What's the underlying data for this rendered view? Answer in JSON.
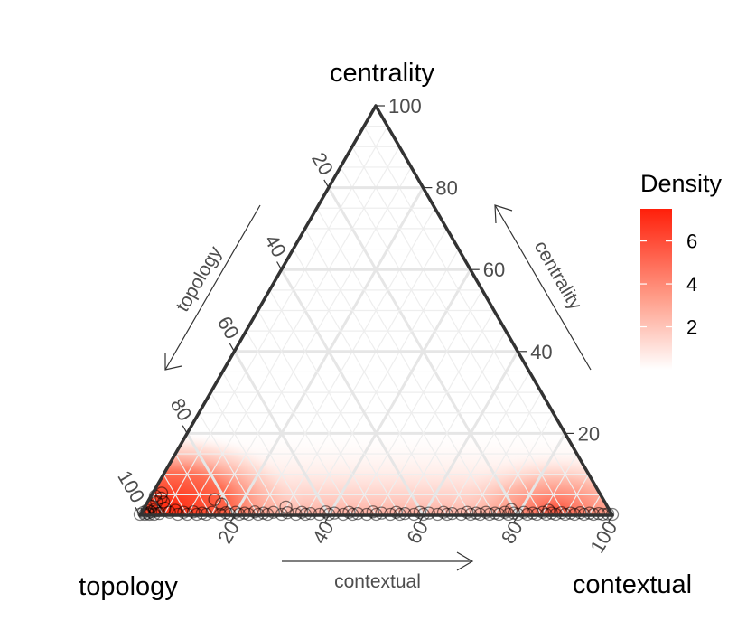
{
  "chart_data": {
    "type": "scatter",
    "subtype": "ternary-density",
    "axes": {
      "top": "centrality",
      "left": "topology",
      "right": "contextual"
    },
    "arrow_labels": {
      "left_side": "topology",
      "right_side": "centrality",
      "bottom": "contextual"
    },
    "tick_values": [
      20,
      40,
      60,
      80,
      100
    ],
    "tick_labels": [
      "20",
      "40",
      "60",
      "80",
      "100"
    ],
    "grid": true,
    "legend": {
      "title": "Density",
      "ticks": [
        2,
        4,
        6
      ],
      "tick_labels": [
        "2",
        "4",
        "6"
      ],
      "max": 7.5,
      "low_color": "#ffffff",
      "high_color": "#ff2a10",
      "position": "right"
    },
    "density_hotspots": [
      {
        "contextual": 6,
        "centrality": 3,
        "strength": 1.0
      },
      {
        "contextual": 92,
        "centrality": 2,
        "strength": 0.6
      }
    ],
    "points_contextual_centrality": [
      [
        0,
        0
      ],
      [
        0.5,
        0.5
      ],
      [
        1,
        0
      ],
      [
        1,
        1
      ],
      [
        1.5,
        0.3
      ],
      [
        2,
        0
      ],
      [
        2,
        0.6
      ],
      [
        2.5,
        1.2
      ],
      [
        3,
        0
      ],
      [
        3,
        0.8
      ],
      [
        4,
        0.2
      ],
      [
        4.5,
        1.5
      ],
      [
        1.5,
        2
      ],
      [
        2,
        3
      ],
      [
        2.5,
        4
      ],
      [
        3.5,
        3
      ],
      [
        1,
        4.5
      ],
      [
        2,
        5.2
      ],
      [
        6,
        0.5
      ],
      [
        7,
        1
      ],
      [
        8,
        0
      ],
      [
        9,
        0.5
      ],
      [
        10,
        0
      ],
      [
        11,
        0.6
      ],
      [
        12,
        0
      ],
      [
        13,
        0.3
      ],
      [
        14,
        0
      ],
      [
        15,
        0.5
      ],
      [
        14,
        3.6
      ],
      [
        16,
        2.5
      ],
      [
        17,
        0
      ],
      [
        18,
        0.4
      ],
      [
        19,
        0
      ],
      [
        20,
        0.5
      ],
      [
        21,
        0
      ],
      [
        22,
        0.3
      ],
      [
        23,
        0
      ],
      [
        24,
        0.6
      ],
      [
        25,
        0
      ],
      [
        26,
        0.3
      ],
      [
        27,
        0
      ],
      [
        28,
        0.5
      ],
      [
        30,
        0
      ],
      [
        30,
        1.8
      ],
      [
        31,
        0.4
      ],
      [
        33,
        0
      ],
      [
        34,
        0.5
      ],
      [
        35,
        0
      ],
      [
        36,
        0.2
      ],
      [
        38,
        0
      ],
      [
        39,
        0.6
      ],
      [
        40,
        0
      ],
      [
        41,
        0.3
      ],
      [
        43,
        0
      ],
      [
        44,
        0.5
      ],
      [
        45,
        0
      ],
      [
        46,
        0.2
      ],
      [
        48,
        0
      ],
      [
        49,
        0.6
      ],
      [
        50,
        0
      ],
      [
        51,
        0.3
      ],
      [
        53,
        0
      ],
      [
        54,
        0.5
      ],
      [
        55,
        0
      ],
      [
        56,
        0.2
      ],
      [
        58,
        0
      ],
      [
        59,
        0.5
      ],
      [
        60,
        0
      ],
      [
        61,
        0.3
      ],
      [
        63,
        0
      ],
      [
        64,
        0.5
      ],
      [
        65,
        0
      ],
      [
        66,
        0.2
      ],
      [
        68,
        0
      ],
      [
        69,
        0.5
      ],
      [
        70,
        0
      ],
      [
        71,
        0.3
      ],
      [
        72,
        0
      ],
      [
        73,
        0.5
      ],
      [
        74,
        0
      ],
      [
        75,
        0.3
      ],
      [
        76,
        0
      ],
      [
        77,
        0.5
      ],
      [
        78,
        0
      ],
      [
        78,
        1.2
      ],
      [
        79,
        0.3
      ],
      [
        80,
        0
      ],
      [
        81,
        0.5
      ],
      [
        82,
        0
      ],
      [
        83,
        0.3
      ],
      [
        84,
        0
      ],
      [
        85,
        0.5
      ],
      [
        86,
        0
      ],
      [
        86,
        1.0
      ],
      [
        87,
        0.3
      ],
      [
        88,
        0
      ],
      [
        89,
        0.4
      ],
      [
        90,
        0
      ],
      [
        91,
        0.3
      ],
      [
        92,
        0
      ],
      [
        93,
        0.4
      ],
      [
        94,
        0
      ],
      [
        95,
        0.3
      ],
      [
        96,
        0
      ],
      [
        97,
        0.2
      ],
      [
        98,
        0
      ],
      [
        99,
        0.1
      ],
      [
        100,
        0
      ]
    ]
  }
}
